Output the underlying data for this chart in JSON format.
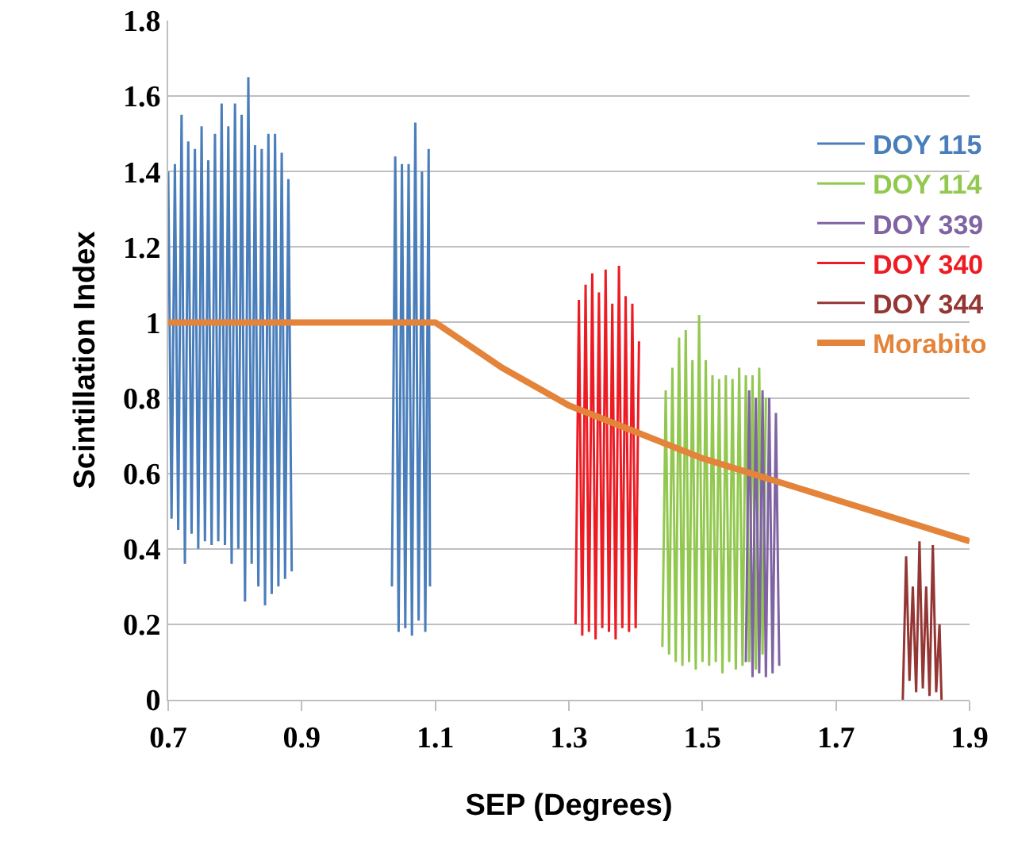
{
  "chart_data": {
    "type": "line",
    "xlabel": "SEP (Degrees)",
    "ylabel": "Scintillation Index",
    "xlim": [
      0.7,
      1.9
    ],
    "xticks": [
      0.7,
      0.9,
      1.1,
      1.3,
      1.5,
      1.7,
      1.9
    ],
    "ylim": [
      0,
      1.8
    ],
    "yticks": [
      0,
      0.2,
      0.4,
      0.6,
      0.8,
      1,
      1.2,
      1.4,
      1.6,
      1.8
    ],
    "grid": "y",
    "legend": "right",
    "marker": "none",
    "line_style": "solid",
    "series": [
      {
        "name": "DOY 115",
        "color": "#4a7ebb",
        "x": [
          0.7,
          0.705,
          0.71,
          0.715,
          0.72,
          0.725,
          0.73,
          0.735,
          0.74,
          0.745,
          0.75,
          0.755,
          0.76,
          0.765,
          0.77,
          0.775,
          0.78,
          0.785,
          0.79,
          0.795,
          0.8,
          0.805,
          0.81,
          0.815,
          0.82,
          0.825,
          0.83,
          0.835,
          0.84,
          0.845,
          0.85,
          0.855,
          0.86,
          0.865,
          0.87,
          0.875,
          0.88,
          0.885,
          0.96,
          1.035,
          1.04,
          1.045,
          1.05,
          1.055,
          1.06,
          1.065,
          1.07,
          1.075,
          1.08,
          1.085,
          1.09,
          1.092
        ],
        "values": [
          1.4,
          0.48,
          1.42,
          0.45,
          1.55,
          0.36,
          1.48,
          0.44,
          1.46,
          0.4,
          1.52,
          0.42,
          1.43,
          0.41,
          1.5,
          0.42,
          1.58,
          0.41,
          1.52,
          0.36,
          1.58,
          0.4,
          1.55,
          0.26,
          1.65,
          0.36,
          1.47,
          0.3,
          1.46,
          0.25,
          1.5,
          0.28,
          1.5,
          0.3,
          1.45,
          0.32,
          1.38,
          0.34,
          null,
          0.3,
          1.44,
          0.18,
          1.42,
          0.19,
          1.42,
          0.17,
          1.53,
          0.21,
          1.4,
          0.18,
          1.46,
          0.3
        ]
      },
      {
        "name": "DOY 114",
        "color": "#92c84f",
        "x": [
          1.44,
          1.445,
          1.45,
          1.455,
          1.46,
          1.465,
          1.47,
          1.475,
          1.48,
          1.485,
          1.49,
          1.495,
          1.5,
          1.505,
          1.51,
          1.515,
          1.52,
          1.525,
          1.53,
          1.535,
          1.54,
          1.545,
          1.55,
          1.555,
          1.56,
          1.565,
          1.57,
          1.575,
          1.58,
          1.585,
          1.59,
          1.595
        ],
        "values": [
          0.14,
          0.82,
          0.12,
          0.88,
          0.1,
          0.96,
          0.09,
          0.98,
          0.1,
          0.9,
          0.08,
          1.02,
          0.1,
          0.9,
          0.09,
          0.86,
          0.1,
          0.85,
          0.07,
          0.86,
          0.1,
          0.85,
          0.08,
          0.88,
          0.09,
          0.86,
          0.1,
          0.86,
          0.08,
          0.88,
          0.12,
          0.8
        ]
      },
      {
        "name": "DOY 339",
        "color": "#7f63a2",
        "x": [
          1.565,
          1.57,
          1.575,
          1.58,
          1.585,
          1.59,
          1.595,
          1.6,
          1.605,
          1.61,
          1.615
        ],
        "values": [
          0.1,
          0.82,
          0.06,
          0.8,
          0.07,
          0.82,
          0.06,
          0.8,
          0.07,
          0.76,
          0.09
        ]
      },
      {
        "name": "DOY 340",
        "color": "#ed1c24",
        "x": [
          1.31,
          1.315,
          1.32,
          1.325,
          1.33,
          1.335,
          1.34,
          1.345,
          1.35,
          1.355,
          1.36,
          1.365,
          1.37,
          1.375,
          1.38,
          1.385,
          1.39,
          1.395,
          1.4,
          1.405
        ],
        "values": [
          0.2,
          1.06,
          0.17,
          1.1,
          0.18,
          1.13,
          0.16,
          1.08,
          0.19,
          1.14,
          0.18,
          1.05,
          0.16,
          1.15,
          0.19,
          1.07,
          0.18,
          1.05,
          0.19,
          0.95
        ]
      },
      {
        "name": "DOY 344",
        "color": "#943634",
        "x": [
          1.8,
          1.805,
          1.81,
          1.815,
          1.82,
          1.825,
          1.83,
          1.835,
          1.84,
          1.845,
          1.85,
          1.855,
          1.858
        ],
        "values": [
          0,
          0.38,
          0.05,
          0.3,
          0.02,
          0.42,
          0.03,
          0.3,
          0.01,
          0.41,
          0.02,
          0.2,
          0
        ]
      },
      {
        "name": "Morabito",
        "color": "#e4843a",
        "x": [
          0.7,
          1.1,
          1.2,
          1.3,
          1.5,
          1.7,
          1.9
        ],
        "values": [
          1,
          1,
          0.88,
          0.78,
          0.64,
          0.53,
          0.42
        ]
      }
    ]
  }
}
